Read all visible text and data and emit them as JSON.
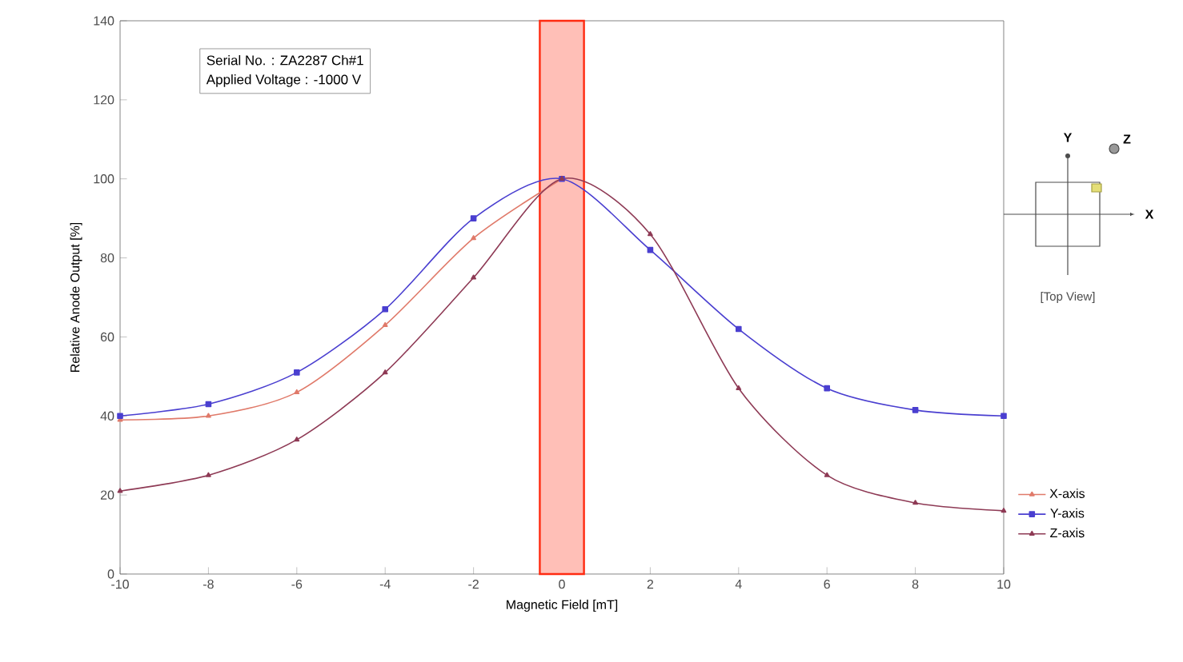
{
  "chart_data": {
    "type": "line",
    "xlabel": "Magnetic Field [mT]",
    "ylabel": "Relative Anode Output [%]",
    "x": [
      -10,
      -8,
      -6,
      -4,
      -2,
      0,
      2,
      4,
      6,
      8,
      10
    ],
    "series": [
      {
        "name": "X-axis",
        "color": "#e07a6a",
        "marker": "triangle",
        "values": [
          39,
          40,
          46,
          63,
          85,
          100,
          null,
          null,
          null,
          null,
          null
        ]
      },
      {
        "name": "Y-axis",
        "color": "#4a3fd0",
        "marker": "square",
        "values": [
          40,
          43,
          51,
          67,
          90,
          100,
          82,
          62,
          47,
          41.5,
          40
        ]
      },
      {
        "name": "Z-axis",
        "color": "#8e3a55",
        "marker": "triangle",
        "values": [
          21,
          25,
          34,
          51,
          75,
          100,
          86,
          47,
          25,
          18,
          16
        ]
      }
    ],
    "xlim": [
      -10,
      10
    ],
    "xticks": [
      -10,
      -8,
      -6,
      -4,
      -2,
      0,
      2,
      4,
      6,
      8,
      10
    ],
    "ylim": [
      0,
      140
    ],
    "yticks": [
      0,
      20,
      40,
      60,
      80,
      100,
      120,
      140
    ],
    "bands": [
      {
        "axis": "x",
        "from": -0.5,
        "to": 0.5,
        "color": "#ff2a10"
      }
    ],
    "legend": "right",
    "annotations": [
      "Serial No. : ZA2287 Ch#1",
      "Applied Voltage : -1000 V",
      "Y",
      "Z",
      "X",
      "[Top View]"
    ]
  }
}
